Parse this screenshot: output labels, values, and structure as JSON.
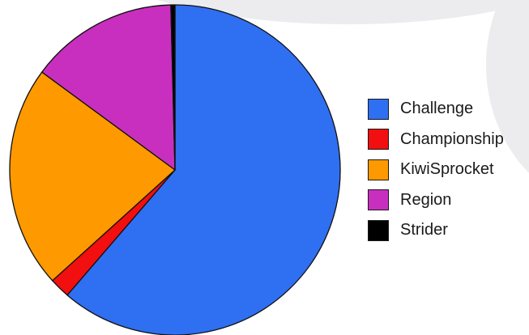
{
  "chart_data": {
    "type": "pie",
    "legend_position": "right",
    "slices": [
      {
        "label": "Challenge",
        "value": 61.3,
        "color": "#2f6ff2"
      },
      {
        "label": "Championship",
        "value": 2.0,
        "color": "#f20f0f"
      },
      {
        "label": "KiwiSprocket",
        "value": 21.8,
        "color": "#ff9900"
      },
      {
        "label": "Region",
        "value": 14.5,
        "color": "#c92fbf"
      },
      {
        "label": "Strider",
        "value": 0.4,
        "color": "#000000"
      }
    ]
  }
}
